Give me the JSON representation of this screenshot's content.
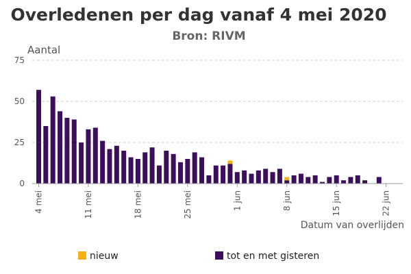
{
  "chart_data": {
    "type": "bar",
    "title": "Overledenen per dag vanaf 4 mei 2020",
    "subtitle": "Bron: RIVM",
    "ylabel": "Aantal",
    "xlabel": "Datum van overlijden",
    "ylim": [
      0,
      75
    ],
    "yticks": [
      "0",
      "25",
      "50",
      "75"
    ],
    "grid": true,
    "legend_position": "bottom",
    "stacked": true,
    "categories": [
      "2020-05-04",
      "2020-05-05",
      "2020-05-06",
      "2020-05-07",
      "2020-05-08",
      "2020-05-09",
      "2020-05-10",
      "2020-05-11",
      "2020-05-12",
      "2020-05-13",
      "2020-05-14",
      "2020-05-15",
      "2020-05-16",
      "2020-05-17",
      "2020-05-18",
      "2020-05-19",
      "2020-05-20",
      "2020-05-21",
      "2020-05-22",
      "2020-05-23",
      "2020-05-24",
      "2020-05-25",
      "2020-05-26",
      "2020-05-27",
      "2020-05-28",
      "2020-05-29",
      "2020-05-30",
      "2020-05-31",
      "2020-06-01",
      "2020-06-02",
      "2020-06-03",
      "2020-06-04",
      "2020-06-05",
      "2020-06-06",
      "2020-06-07",
      "2020-06-08",
      "2020-06-09",
      "2020-06-10",
      "2020-06-11",
      "2020-06-12",
      "2020-06-13",
      "2020-06-14",
      "2020-06-15",
      "2020-06-16",
      "2020-06-17",
      "2020-06-18",
      "2020-06-19",
      "2020-06-20",
      "2020-06-21",
      "2020-06-22",
      "2020-06-23"
    ],
    "xticks": [
      {
        "date": "2020-05-04",
        "label": "4 mei"
      },
      {
        "date": "2020-05-11",
        "label": "11 mei"
      },
      {
        "date": "2020-05-18",
        "label": "18 mei"
      },
      {
        "date": "2020-05-25",
        "label": "25 mei"
      },
      {
        "date": "2020-06-01",
        "label": "1 jun"
      },
      {
        "date": "2020-06-08",
        "label": "8 jun"
      },
      {
        "date": "2020-06-15",
        "label": "15 jun"
      },
      {
        "date": "2020-06-22",
        "label": "22 jun"
      }
    ],
    "series": [
      {
        "name": "tot en met gisteren",
        "color": "#3b0f5c",
        "values": [
          57,
          35,
          53,
          44,
          40,
          39,
          25,
          33,
          34,
          26,
          21,
          23,
          20,
          16,
          15,
          19,
          22,
          11,
          20,
          18,
          13,
          15,
          19,
          16,
          5,
          11,
          11,
          12,
          7,
          8,
          6,
          8,
          9,
          7,
          9,
          2,
          5,
          6,
          4,
          5,
          1,
          4,
          5,
          2,
          4,
          5,
          2,
          0,
          4,
          0,
          0
        ]
      },
      {
        "name": "nieuw",
        "color": "#f5b014",
        "values": [
          0,
          0,
          0,
          0,
          0,
          0,
          0,
          0,
          0,
          0,
          0,
          0,
          0,
          0,
          0,
          0,
          0,
          0,
          0,
          0,
          0,
          0,
          0,
          0,
          0,
          0,
          0,
          2,
          0,
          0,
          0,
          0,
          0,
          0,
          0,
          2,
          0,
          0,
          0,
          0,
          0,
          0,
          0,
          0,
          0,
          0,
          0,
          0,
          0,
          0,
          0
        ]
      }
    ],
    "legend": [
      {
        "label": "nieuw",
        "color": "#f5b014"
      },
      {
        "label": "tot en met gisteren",
        "color": "#3b0f5c"
      }
    ]
  }
}
